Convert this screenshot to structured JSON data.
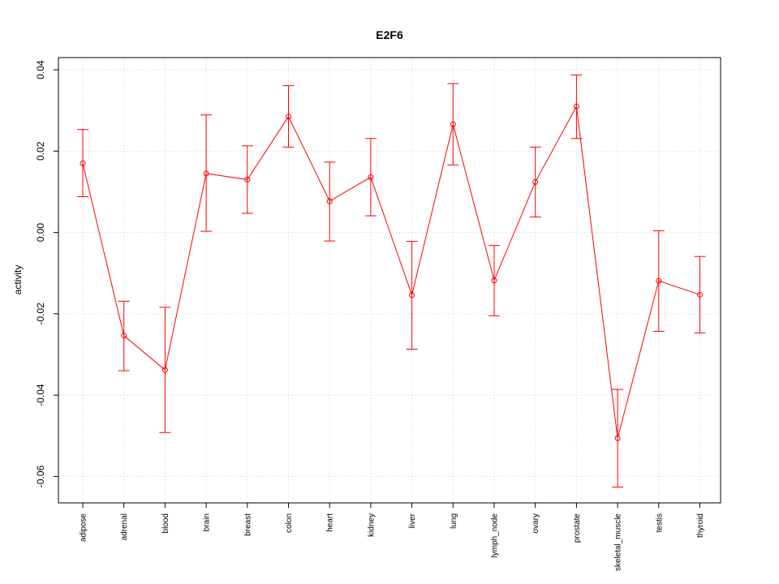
{
  "chart_data": {
    "type": "line",
    "title": "E2F6",
    "xlabel": "",
    "ylabel": "activity",
    "ylim": [
      -0.0665,
      0.043
    ],
    "yticks": [
      -0.06,
      -0.04,
      -0.02,
      0.0,
      0.02,
      0.04
    ],
    "ytick_labels": [
      "-0.06",
      "-0.04",
      "-0.02",
      "0.00",
      "0.02",
      "0.04"
    ],
    "grid": true,
    "categories": [
      "adipose",
      "adrenal",
      "blood",
      "brain",
      "breast",
      "colon",
      "heart",
      "kidney",
      "liver",
      "lung",
      "lymph_node",
      "ovary",
      "prostate",
      "skeletal_muscle",
      "testis",
      "thyroid"
    ],
    "series": [
      {
        "values": [
          0.017,
          -0.0254,
          -0.0338,
          0.0145,
          0.013,
          0.0285,
          0.0077,
          0.0136,
          -0.0154,
          0.0266,
          -0.0118,
          0.0124,
          0.031,
          -0.0506,
          -0.0119,
          -0.0153
        ],
        "upper": [
          0.0253,
          -0.0169,
          -0.0184,
          0.0289,
          0.0213,
          0.0361,
          0.0173,
          0.0231,
          -0.0022,
          0.0366,
          -0.0032,
          0.021,
          0.0387,
          -0.0386,
          0.0004,
          -0.0059
        ],
        "lower": [
          0.0088,
          -0.034,
          -0.0492,
          0.0003,
          0.0047,
          0.021,
          -0.0021,
          0.0041,
          -0.0287,
          0.0166,
          -0.0205,
          0.0038,
          0.0231,
          -0.0626,
          -0.0243,
          -0.0247
        ],
        "color": "#ff0000"
      }
    ]
  },
  "colors": {
    "series": "#ff0000",
    "grid": "#d3d3d3",
    "axis": "#000000"
  }
}
